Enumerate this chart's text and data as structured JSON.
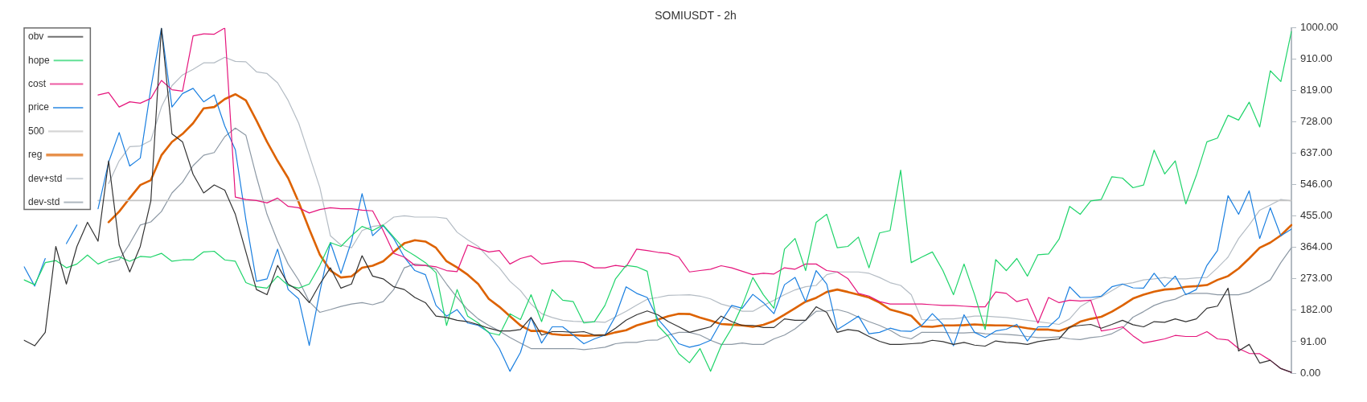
{
  "chart_data": {
    "type": "line",
    "title": "SOMIUSDT - 2h",
    "categories": [
      null,
      null,
      null,
      null,
      null,
      null,
      null,
      null,
      null,
      null,
      null,
      null,
      null,
      null,
      null,
      null,
      null,
      null,
      null,
      null,
      null,
      null,
      null,
      null,
      null,
      null,
      null,
      null,
      null,
      null,
      null,
      null,
      null,
      null,
      null,
      null,
      null,
      null,
      null,
      null,
      null,
      null,
      null,
      null,
      null,
      null,
      null,
      null,
      null,
      null,
      null,
      null,
      null,
      null,
      null,
      null,
      null,
      null,
      null,
      null,
      null,
      null,
      null,
      null,
      null,
      null,
      null,
      null,
      null,
      null,
      null,
      null,
      null,
      null,
      null,
      null,
      null,
      null,
      null,
      null,
      null,
      null,
      null,
      null,
      null,
      null,
      null,
      null,
      null,
      null,
      null,
      null,
      null,
      null,
      null,
      null,
      null,
      null,
      null,
      null,
      null,
      null,
      null,
      null,
      null,
      null,
      null,
      null,
      null,
      null,
      null,
      null,
      null,
      null,
      null,
      null,
      null,
      null,
      null,
      null,
      null
    ],
    "series": [
      {
        "name": "obv",
        "color": "#333333",
        "values": [
          95,
          79,
          118,
          367,
          258,
          367,
          437,
          382,
          615,
          371,
          293,
          367,
          499,
          1000,
          693,
          670,
          576,
          522,
          545,
          530,
          460,
          351,
          242,
          227,
          312,
          258,
          239,
          204,
          258,
          305,
          246,
          258,
          340,
          281,
          273,
          250,
          242,
          219,
          204,
          165,
          161,
          153,
          149,
          140,
          130,
          122,
          122,
          126,
          161,
          110,
          120,
          120,
          118,
          120,
          110,
          110,
          130,
          153,
          169,
          180,
          169,
          149,
          134,
          118,
          126,
          134,
          165,
          149,
          138,
          138,
          132,
          132,
          157,
          153,
          153,
          192,
          176,
          118,
          126,
          122,
          106,
          92,
          83,
          83,
          85,
          87,
          95,
          91,
          83,
          89,
          81,
          78,
          93,
          89,
          87,
          83,
          91,
          96,
          99,
          134,
          138,
          141,
          130,
          141,
          153,
          140,
          134,
          149,
          147,
          157,
          149,
          157,
          188,
          194,
          246,
          64,
          83,
          29,
          37,
          13,
          2
        ]
      },
      {
        "name": "hope",
        "color": "#1fd46a",
        "values": [
          270,
          256,
          320,
          326,
          305,
          316,
          342,
          316,
          329,
          337,
          324,
          338,
          336,
          347,
          324,
          328,
          328,
          351,
          353,
          328,
          324,
          262,
          250,
          246,
          281,
          254,
          246,
          258,
          312,
          378,
          367,
          398,
          425,
          413,
          429,
          394,
          359,
          340,
          320,
          291,
          138,
          242,
          165,
          145,
          117,
          110,
          172,
          155,
          227,
          149,
          242,
          211,
          207,
          145,
          149,
          196,
          273,
          312,
          308,
          295,
          138,
          106,
          56,
          30,
          71,
          5,
          79,
          130,
          196,
          277,
          227,
          188,
          359,
          390,
          297,
          437,
          460,
          363,
          367,
          394,
          305,
          406,
          413,
          588,
          320,
          336,
          351,
          297,
          227,
          316,
          227,
          126,
          329,
          297,
          332,
          281,
          343,
          345,
          388,
          483,
          460,
          499,
          503,
          569,
          565,
          537,
          545,
          646,
          577,
          615,
          490,
          573,
          670,
          681,
          747,
          733,
          785,
          713,
          876,
          845,
          990
        ]
      },
      {
        "name": "cost",
        "color": "#e5157c",
        "values": [
          null,
          null,
          null,
          null,
          null,
          null,
          null,
          806,
          813,
          771,
          786,
          782,
          796,
          848,
          821,
          817,
          977,
          983,
          982,
          1000,
          510,
          503,
          500,
          493,
          507,
          483,
          479,
          464,
          474,
          479,
          476,
          476,
          472,
          470,
          413,
          347,
          336,
          312,
          312,
          308,
          297,
          294,
          371,
          361,
          351,
          355,
          316,
          332,
          340,
          316,
          320,
          324,
          324,
          320,
          305,
          305,
          312,
          308,
          359,
          355,
          350,
          347,
          336,
          293,
          297,
          301,
          311,
          305,
          295,
          285,
          289,
          287,
          305,
          301,
          316,
          316,
          297,
          293,
          274,
          231,
          223,
          207,
          200,
          200,
          200,
          200,
          198,
          196,
          196,
          194,
          192,
          192,
          235,
          231,
          207,
          215,
          145,
          219,
          204,
          211,
          209,
          211,
          122,
          127,
          134,
          108,
          87,
          93,
          99,
          109,
          106,
          106,
          120,
          99,
          96,
          71,
          57,
          56,
          37,
          13,
          2
        ]
      },
      {
        "name": "price",
        "color": "#1a7fe0",
        "values": [
          308,
          252,
          332,
          null,
          375,
          429,
          null,
          476,
          611,
          697,
          600,
          623,
          825,
          1000,
          771,
          810,
          825,
          786,
          806,
          716,
          647,
          444,
          266,
          273,
          359,
          242,
          215,
          80,
          235,
          378,
          289,
          382,
          520,
          398,
          427,
          390,
          336,
          297,
          285,
          196,
          165,
          184,
          145,
          138,
          118,
          71,
          5,
          60,
          161,
          87,
          134,
          134,
          110,
          85,
          99,
          110,
          165,
          250,
          231,
          219,
          157,
          122,
          85,
          75,
          82,
          95,
          149,
          196,
          188,
          228,
          204,
          172,
          256,
          277,
          207,
          297,
          258,
          126,
          145,
          165,
          114,
          118,
          130,
          122,
          121,
          138,
          172,
          141,
          79,
          169,
          118,
          103,
          122,
          127,
          141,
          93,
          134,
          134,
          161,
          250,
          219,
          219,
          223,
          250,
          258,
          247,
          246,
          289,
          250,
          281,
          227,
          242,
          312,
          355,
          514,
          460,
          528,
          390,
          479,
          398,
          417
        ]
      },
      {
        "name": "500",
        "color": "#c4c4c4",
        "values": [
          null,
          null,
          null,
          null,
          null,
          null,
          null,
          500,
          500,
          500,
          500,
          500,
          500,
          500,
          500,
          500,
          500,
          500,
          500,
          500,
          500,
          500,
          500,
          500,
          500,
          500,
          500,
          500,
          500,
          500,
          500,
          500,
          500,
          500,
          500,
          500,
          500,
          500,
          500,
          500,
          500,
          500,
          500,
          500,
          500,
          500,
          500,
          500,
          500,
          500,
          500,
          500,
          500,
          500,
          500,
          500,
          500,
          500,
          500,
          500,
          500,
          500,
          500,
          500,
          500,
          500,
          500,
          500,
          500,
          500,
          500,
          500,
          500,
          500,
          500,
          500,
          500,
          500,
          500,
          500,
          500,
          500,
          500,
          500,
          500,
          500,
          500,
          500,
          500,
          500,
          500,
          500,
          500,
          500,
          500,
          500,
          500,
          500,
          500,
          500,
          500,
          500,
          500,
          500,
          500,
          500,
          500,
          500,
          500,
          500,
          500,
          500,
          500,
          500,
          500,
          500,
          500,
          500,
          500,
          500,
          500
        ]
      },
      {
        "name": "reg",
        "color": "#dd6200",
        "values": [
          null,
          null,
          null,
          null,
          null,
          null,
          null,
          null,
          437,
          468,
          507,
          545,
          559,
          631,
          670,
          693,
          724,
          767,
          771,
          794,
          808,
          790,
          732,
          670,
          615,
          565,
          495,
          417,
          343,
          297,
          277,
          280,
          305,
          311,
          324,
          351,
          376,
          385,
          381,
          363,
          324,
          306,
          285,
          258,
          215,
          192,
          165,
          138,
          122,
          122,
          113,
          110,
          110,
          108,
          109,
          110,
          118,
          124,
          138,
          147,
          155,
          165,
          172,
          171,
          161,
          152,
          142,
          140,
          138,
          134,
          140,
          151,
          169,
          188,
          207,
          218,
          235,
          242,
          235,
          227,
          219,
          204,
          184,
          176,
          166,
          135,
          134,
          138,
          138,
          139,
          141,
          139,
          138,
          138,
          135,
          130,
          126,
          126,
          122,
          132,
          149,
          157,
          163,
          178,
          196,
          216,
          227,
          236,
          242,
          244,
          250,
          252,
          255,
          270,
          281,
          303,
          332,
          363,
          378,
          399,
          429
        ]
      },
      {
        "name": "dev+std",
        "color": "#b4bcc4",
        "values": [
          null,
          null,
          null,
          null,
          null,
          null,
          null,
          null,
          549,
          615,
          656,
          658,
          674,
          771,
          833,
          864,
          880,
          899,
          899,
          915,
          903,
          902,
          873,
          868,
          841,
          790,
          724,
          631,
          538,
          398,
          371,
          363,
          413,
          425,
          429,
          452,
          456,
          452,
          452,
          452,
          448,
          408,
          386,
          367,
          334,
          305,
          266,
          239,
          200,
          172,
          161,
          153,
          150,
          149,
          149,
          147,
          163,
          179,
          197,
          214,
          219,
          225,
          226,
          227,
          223,
          215,
          200,
          192,
          179,
          179,
          196,
          211,
          227,
          241,
          250,
          254,
          285,
          293,
          293,
          293,
          289,
          277,
          262,
          254,
          227,
          155,
          153,
          157,
          157,
          161,
          165,
          165,
          163,
          161,
          157,
          153,
          149,
          145,
          141,
          157,
          192,
          211,
          221,
          239,
          257,
          262,
          270,
          273,
          277,
          273,
          273,
          276,
          277,
          305,
          336,
          390,
          429,
          472,
          487,
          503,
          499
        ]
      },
      {
        "name": "dev-std",
        "color": "#8c98a4",
        "values": [
          null,
          null,
          null,
          null,
          null,
          null,
          null,
          null,
          320,
          328,
          375,
          429,
          438,
          468,
          522,
          553,
          601,
          631,
          639,
          685,
          710,
          689,
          569,
          460,
          382,
          316,
          269,
          207,
          176,
          184,
          193,
          200,
          204,
          198,
          207,
          242,
          305,
          316,
          312,
          301,
          258,
          219,
          184,
          157,
          138,
          122,
          103,
          87,
          71,
          71,
          71,
          71,
          71,
          68,
          71,
          75,
          85,
          89,
          89,
          95,
          96,
          110,
          118,
          118,
          110,
          95,
          83,
          83,
          87,
          83,
          83,
          99,
          110,
          128,
          153,
          179,
          180,
          184,
          176,
          162,
          149,
          138,
          124,
          106,
          99,
          118,
          118,
          118,
          116,
          116,
          118,
          114,
          113,
          112,
          110,
          106,
          103,
          103,
          105,
          99,
          97,
          103,
          106,
          114,
          130,
          162,
          178,
          196,
          207,
          214,
          229,
          231,
          231,
          227,
          227,
          227,
          235,
          252,
          270,
          320,
          363
        ]
      }
    ],
    "ylim": [
      0,
      1000
    ],
    "yticks": [
      {
        "value": 0,
        "label": "0.00"
      },
      {
        "value": 91,
        "label": "91.00"
      },
      {
        "value": 182,
        "label": "182.00"
      },
      {
        "value": 273,
        "label": "273.00"
      },
      {
        "value": 364,
        "label": "364.00"
      },
      {
        "value": 455,
        "label": "455.00"
      },
      {
        "value": 546,
        "label": "546.00"
      },
      {
        "value": 637,
        "label": "637.00"
      },
      {
        "value": 728,
        "label": "728.00"
      },
      {
        "value": 819,
        "label": "819.00"
      },
      {
        "value": 910,
        "label": "910.00"
      },
      {
        "value": 1000,
        "label": "1000.00"
      }
    ],
    "grid": false,
    "legend": "top left"
  }
}
